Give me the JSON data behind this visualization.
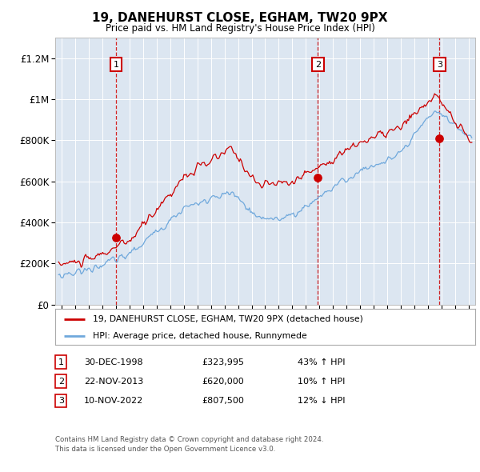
{
  "title": "19, DANEHURST CLOSE, EGHAM, TW20 9PX",
  "subtitle": "Price paid vs. HM Land Registry's House Price Index (HPI)",
  "legend_line1": "19, DANEHURST CLOSE, EGHAM, TW20 9PX (detached house)",
  "legend_line2": "HPI: Average price, detached house, Runnymede",
  "footer1": "Contains HM Land Registry data © Crown copyright and database right 2024.",
  "footer2": "This data is licensed under the Open Government Licence v3.0.",
  "sales": [
    {
      "num": "1",
      "date": "30-DEC-1998",
      "price": "£323,995",
      "pct": "43% ↑ HPI"
    },
    {
      "num": "2",
      "date": "22-NOV-2013",
      "price": "£620,000",
      "pct": "10% ↑ HPI"
    },
    {
      "num": "3",
      "date": "10-NOV-2022",
      "price": "£807,500",
      "pct": "12% ↓ HPI"
    }
  ],
  "sale_dates_decimal": [
    1998.99,
    2013.89,
    2022.86
  ],
  "sale_prices": [
    323995,
    620000,
    807500
  ],
  "vline_dates": [
    1998.99,
    2013.89,
    2022.86
  ],
  "plot_bg": "#dce6f1",
  "red_color": "#cc0000",
  "blue_color": "#6fa8dc",
  "ylim": [
    0,
    1300000
  ],
  "xlim_start": 1994.5,
  "xlim_end": 2025.5,
  "yticks": [
    0,
    200000,
    400000,
    600000,
    800000,
    1000000,
    1200000
  ],
  "ytick_labels": [
    "£0",
    "£200K",
    "£400K",
    "£600K",
    "£800K",
    "£1M",
    "£1.2M"
  ]
}
